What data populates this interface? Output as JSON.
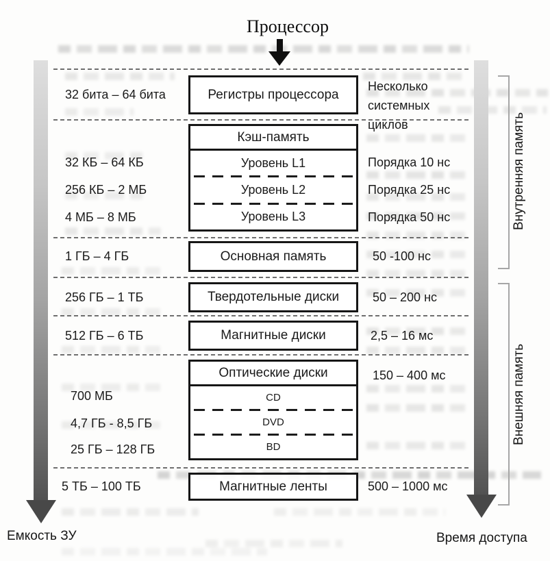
{
  "figure": {
    "processor_label": "Процессор",
    "capacity_axis_label": "Емкость ЗУ",
    "access_time_axis_label": "Время доступа",
    "internal_memory_label": "Внутренняя память",
    "external_memory_label": "Внешняя память"
  },
  "levels": {
    "registers": {
      "capacity": "32 бита – 64 бита",
      "name": "Регистры процессора",
      "time": "Несколько системных циклов"
    },
    "cache": {
      "name": "Кэш-память",
      "l1": {
        "capacity": "32 КБ – 64 КБ",
        "name": "Уровень L1",
        "time": "Порядка 10 нс"
      },
      "l2": {
        "capacity": "256 КБ – 2 МБ",
        "name": "Уровень L2",
        "time": "Порядка 25 нс"
      },
      "l3": {
        "capacity": "4 МБ – 8 МБ",
        "name": "Уровень L3",
        "time": "Порядка 50 нс"
      }
    },
    "main_memory": {
      "capacity": "1 ГБ – 4 ГБ",
      "name": "Основная память",
      "time": "50 -100 нс"
    },
    "ssd": {
      "capacity": "256 ГБ – 1 ТБ",
      "name": "Твердотельные диски",
      "time": "50 – 200 нс"
    },
    "hdd": {
      "capacity": "512 ГБ – 6 ТБ",
      "name": "Магнитные диски",
      "time": "2,5 – 16 мс"
    },
    "optical": {
      "name": "Оптические диски",
      "time": "150 – 400 мс",
      "cd": {
        "capacity": "700 МБ",
        "name": "CD"
      },
      "dvd": {
        "capacity": "4,7 ГБ - 8,5 ГБ",
        "name": "DVD"
      },
      "bd": {
        "capacity": "25 ГБ – 128 ГБ",
        "name": "BD"
      }
    },
    "tape": {
      "capacity": "5 ТБ – 100 ТБ",
      "name": "Магнитные ленты",
      "time": "500 – 1000 мс"
    }
  },
  "colors": {
    "box_border": "#161616",
    "separator": "#6e6e6e",
    "bracket": "#a6a6a6",
    "arrow_light": "#dedede",
    "arrow_dark": "#484848"
  }
}
